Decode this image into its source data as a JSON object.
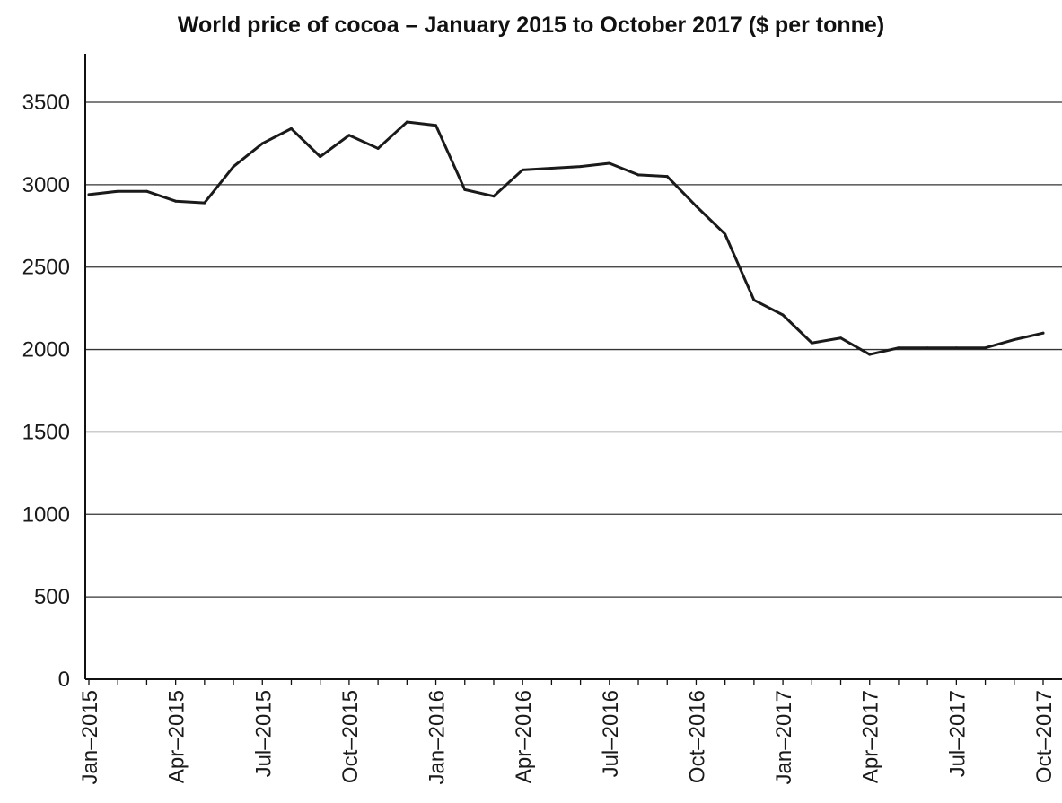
{
  "chart_data": {
    "type": "line",
    "title": "World price of cocoa – January 2015 to October 2017 ($ per tonne)",
    "xlabel": "",
    "ylabel": "",
    "ylim": [
      0,
      3500
    ],
    "yticks": [
      "0",
      "500",
      "1000",
      "1500",
      "2000",
      "2500",
      "3000",
      "3500"
    ],
    "xticks": [
      "Jan–2015",
      "Apr–2015",
      "Jul–2015",
      "Oct–2015",
      "Jan–2016",
      "Apr–2016",
      "Jul–2016",
      "Oct–2016",
      "Jan–2017",
      "Apr–2017",
      "Jul–2017",
      "Oct–2017"
    ],
    "grid": true,
    "line_color": "#1a1a1a",
    "x": [
      "Jan–2015",
      "Feb–2015",
      "Mar–2015",
      "Apr–2015",
      "May–2015",
      "Jun–2015",
      "Jul–2015",
      "Aug–2015",
      "Sep–2015",
      "Oct–2015",
      "Nov–2015",
      "Dec–2015",
      "Jan–2016",
      "Feb–2016",
      "Mar–2016",
      "Apr–2016",
      "May–2016",
      "Jun–2016",
      "Jul–2016",
      "Aug–2016",
      "Sep–2016",
      "Oct–2016",
      "Nov–2016",
      "Dec–2016",
      "Jan–2017",
      "Feb–2017",
      "Mar–2017",
      "Apr–2017",
      "May–2017",
      "Jun–2017",
      "Jul–2017",
      "Aug–2017",
      "Sep–2017",
      "Oct–2017"
    ],
    "series": [
      {
        "values": [
          2940,
          2960,
          2960,
          2900,
          2890,
          3110,
          3250,
          3340,
          3170,
          3300,
          3220,
          3380,
          3360,
          2970,
          2930,
          3090,
          3100,
          3110,
          3130,
          3060,
          3050,
          2870,
          2700,
          2300,
          2210,
          2040,
          2070,
          1970,
          2010,
          2010,
          2010,
          2010,
          2060,
          2100
        ]
      }
    ]
  }
}
